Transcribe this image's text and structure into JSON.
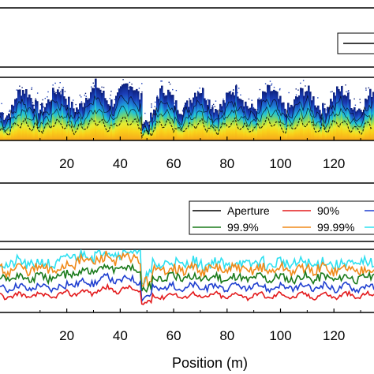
{
  "chart_data": [
    {
      "type": "heatmap",
      "xlabel": "",
      "ylabel": "",
      "xlim": [
        -5,
        135
      ],
      "xticks": [
        20,
        40,
        60,
        80,
        100,
        120
      ],
      "colormap": [
        "#f7a41b",
        "#f9d21a",
        "#e4ec33",
        "#7fd664",
        "#20c4d8",
        "#1e7fd6",
        "#1b3fb8",
        "#0d1f7a"
      ],
      "legend": {
        "placement": "top-right",
        "entries": [
          ""
        ]
      },
      "contour_lines": [
        "#000000"
      ]
    },
    {
      "type": "line",
      "xlabel": "Position (m)",
      "ylabel": "",
      "xlim": [
        -5,
        135
      ],
      "xticks": [
        20,
        40,
        60,
        80,
        100,
        120
      ],
      "legend_placement": "top-right",
      "series": [
        {
          "name": "Aperture",
          "color": "#000000",
          "offset": 0.0,
          "amp": 0.0
        },
        {
          "name": "90%",
          "color": "#e31a1c",
          "offset": 0.08,
          "amp": 0.08
        },
        {
          "name": "",
          "color": "#1f3fd0",
          "offset": 0.22,
          "amp": 0.12
        },
        {
          "name": "99.9%",
          "color": "#1a7a1a",
          "offset": 0.38,
          "amp": 0.16
        },
        {
          "name": "99.99%",
          "color": "#f08a1a",
          "offset": 0.52,
          "amp": 0.2
        },
        {
          "name": "",
          "color": "#2ee0f0",
          "offset": 0.62,
          "amp": 0.22
        }
      ]
    }
  ]
}
